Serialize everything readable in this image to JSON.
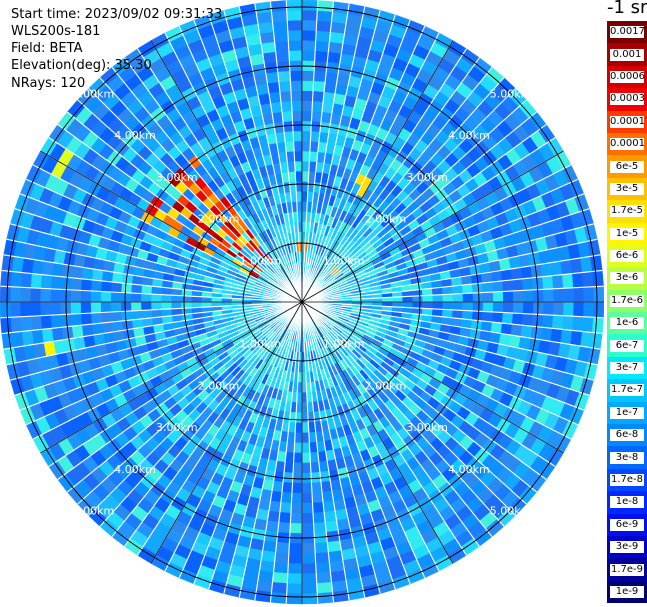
{
  "info": {
    "start_time": "Start time: 2023/09/02 09:31:33",
    "instrument": "WLS200s-181",
    "field": "Field: BETA",
    "elevation": "Elevation(deg): 35.30",
    "nrays": "NRays: 120"
  },
  "chart_data": {
    "type": "heatmap",
    "projection": "polar-ppi",
    "field": "BETA",
    "n_rays": 120,
    "range_rings_km": [
      1.0,
      2.0,
      3.0,
      4.0,
      5.0
    ],
    "range_ring_labels": [
      "1.00km",
      "2.00km",
      "3.00km",
      "4.00km",
      "5.00km"
    ],
    "spoke_angles_deg": [
      0,
      30,
      60,
      90,
      120,
      150,
      180,
      210,
      240,
      270,
      300,
      330
    ],
    "colorbar": {
      "unit_label": "-1 sr",
      "tick_labels": [
        "0.0017",
        "0.001",
        "0.0006",
        "0.0003",
        "0.00017",
        "0.0001",
        "6e-5",
        "3e-5",
        "1.7e-5",
        "1e-5",
        "6e-6",
        "3e-6",
        "1.7e-6",
        "1e-6",
        "6e-7",
        "3e-7",
        "1.7e-7",
        "1e-7",
        "6e-8",
        "3e-8",
        "1.7e-8",
        "1e-8",
        "6e-9",
        "3e-9",
        "1.7e-9",
        "1e-9"
      ],
      "colors": [
        "#7a0000",
        "#a60000",
        "#d40000",
        "#f00000",
        "#ff3a00",
        "#ff7000",
        "#ff9a00",
        "#ffc000",
        "#ffe000",
        "#fff500",
        "#e0ff1e",
        "#b8ff40",
        "#8cff6a",
        "#5cff9a",
        "#2cffcc",
        "#00e8ff",
        "#00c8ff",
        "#00a8ff",
        "#0088ff",
        "#0068ff",
        "#0048ff",
        "#0028ff",
        "#0010f0",
        "#0000c8",
        "#00009a",
        "#000070"
      ]
    }
  }
}
